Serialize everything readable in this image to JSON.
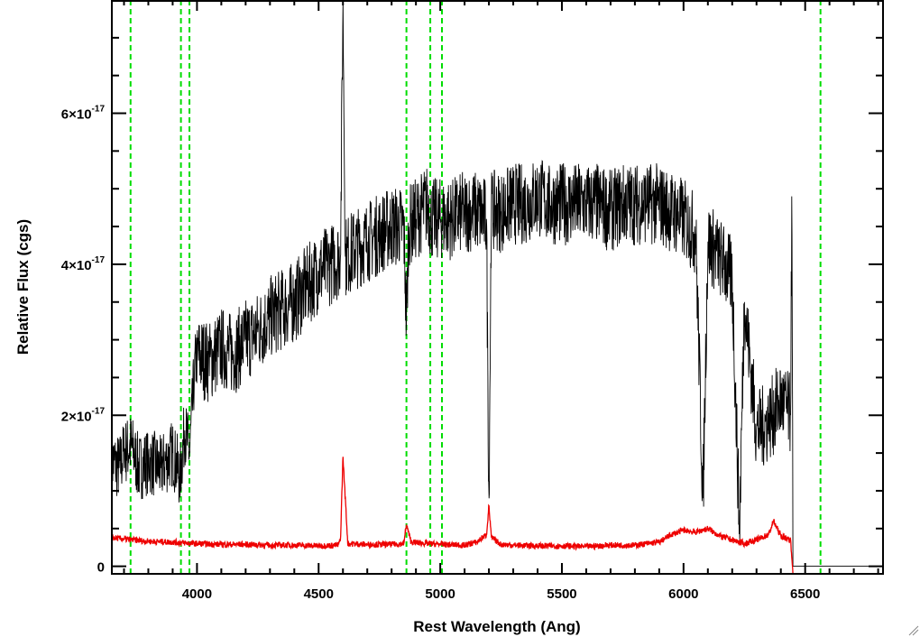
{
  "chart_data": {
    "type": "line",
    "xlabel": "Rest Wavelength (Ang)",
    "ylabel": "Relative Flux (cgs)",
    "xlim": [
      3650,
      6820
    ],
    "ylim": [
      -1e-18,
      7.5e-17
    ],
    "x_ticks": [
      {
        "value": 4000,
        "label": "4000"
      },
      {
        "value": 4500,
        "label": "4500"
      },
      {
        "value": 5000,
        "label": "5000"
      },
      {
        "value": 5500,
        "label": "5500"
      },
      {
        "value": 6000,
        "label": "6000"
      },
      {
        "value": 6500,
        "label": "6500"
      }
    ],
    "y_ticks": [
      {
        "value": 0,
        "mantissa": "0",
        "exponent": ""
      },
      {
        "value": 2e-17,
        "mantissa": "2×10",
        "exponent": "-17"
      },
      {
        "value": 4e-17,
        "mantissa": "4×10",
        "exponent": "-17"
      },
      {
        "value": 6e-17,
        "mantissa": "6×10",
        "exponent": "-17"
      }
    ],
    "grid": false,
    "vertical_lines": {
      "color": "#00dd00",
      "style": "dashed",
      "x": [
        3727,
        3934,
        3969,
        4861,
        4959,
        5007,
        6563
      ]
    },
    "series": [
      {
        "color": "#000000",
        "x": [
          3650,
          3680,
          3700,
          3730,
          3760,
          3800,
          3850,
          3900,
          3930,
          3950,
          3970,
          3990,
          4000,
          4050,
          4100,
          4150,
          4200,
          4250,
          4300,
          4350,
          4400,
          4450,
          4500,
          4550,
          4590,
          4600,
          4610,
          4650,
          4700,
          4750,
          4800,
          4850,
          4861,
          4870,
          4900,
          4950,
          4960,
          5000,
          5050,
          5100,
          5150,
          5190,
          5200,
          5210,
          5250,
          5300,
          5350,
          5400,
          5450,
          5500,
          5550,
          5600,
          5650,
          5700,
          5750,
          5800,
          5850,
          5900,
          5950,
          6000,
          6050,
          6080,
          6100,
          6150,
          6200,
          6230,
          6250,
          6300,
          6350,
          6400,
          6440,
          6445,
          6450,
          6820
        ],
        "values": [
          1.4e-17,
          1.3e-17,
          1.5e-17,
          1.6e-17,
          1.3e-17,
          1.4e-17,
          1.3e-17,
          1.5e-17,
          1.2e-17,
          1.8e-17,
          1.5e-17,
          2.6e-17,
          2.8e-17,
          2.7e-17,
          2.9e-17,
          2.8e-17,
          3e-17,
          3.1e-17,
          3.3e-17,
          3.4e-17,
          3.5e-17,
          3.7e-17,
          3.9e-17,
          4e-17,
          4.1e-17,
          7.5e-17,
          4.1e-17,
          4.2e-17,
          4.3e-17,
          4.4e-17,
          4.5e-17,
          4.5e-17,
          3.2e-17,
          4.5e-17,
          4.6e-17,
          4.8e-17,
          4.6e-17,
          4.6e-17,
          4.6e-17,
          4.7e-17,
          4.7e-17,
          4.6e-17,
          9e-18,
          4.7e-17,
          4.7e-17,
          4.8e-17,
          4.8e-17,
          4.9e-17,
          4.8e-17,
          4.8e-17,
          4.8e-17,
          4.8e-17,
          4.8e-17,
          4.7e-17,
          4.8e-17,
          4.8e-17,
          4.8e-17,
          4.8e-17,
          4.7e-17,
          4.6e-17,
          4.4e-17,
          9e-18,
          4.3e-17,
          4.1e-17,
          3.8e-17,
          5e-18,
          3.5e-17,
          1.8e-17,
          1.9e-17,
          2.2e-17,
          2e-17,
          4.9e-17,
          0,
          0
        ]
      },
      {
        "color": "#ee0000",
        "x": [
          3650,
          3700,
          3800,
          3900,
          4000,
          4100,
          4200,
          4300,
          4400,
          4500,
          4580,
          4590,
          4600,
          4620,
          4700,
          4800,
          4850,
          4861,
          4880,
          4950,
          5000,
          5100,
          5150,
          5190,
          5200,
          5210,
          5250,
          5300,
          5400,
          5500,
          5600,
          5700,
          5800,
          5850,
          5900,
          5950,
          6000,
          6050,
          6100,
          6150,
          6200,
          6250,
          6300,
          6350,
          6370,
          6400,
          6440,
          6450,
          6820
        ],
        "values": [
          3.8e-18,
          3.6e-18,
          3.3e-18,
          3.2e-18,
          3e-18,
          2.9e-18,
          2.9e-18,
          2.8e-18,
          2.8e-18,
          2.7e-18,
          2.8e-18,
          3.5e-18,
          1.45e-17,
          3e-18,
          2.9e-18,
          2.9e-18,
          3e-18,
          5.5e-18,
          3.2e-18,
          3e-18,
          2.9e-18,
          2.8e-18,
          3.2e-18,
          4.2e-18,
          8e-18,
          3.8e-18,
          2.9e-18,
          2.8e-18,
          2.7e-18,
          2.7e-18,
          2.6e-18,
          2.8e-18,
          2.8e-18,
          3e-18,
          3.2e-18,
          4.2e-18,
          4.8e-18,
          4.5e-18,
          5e-18,
          4e-18,
          3.5e-18,
          3e-18,
          3.5e-18,
          4.2e-18,
          6e-18,
          4e-18,
          3.5e-18,
          -1e-18,
          -1e-18
        ]
      }
    ]
  }
}
